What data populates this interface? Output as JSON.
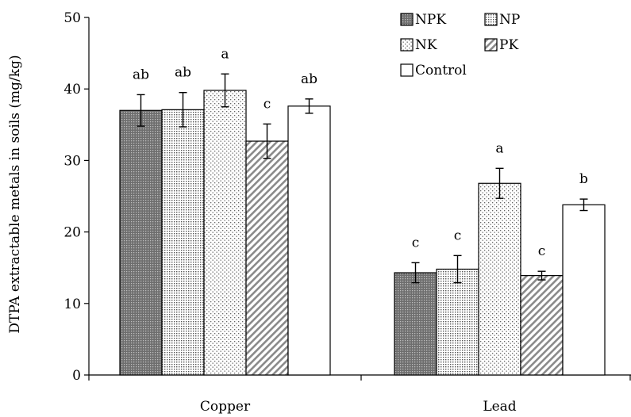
{
  "chart_data": {
    "type": "bar",
    "ylabel": "DTPA extractable metals in soils (mg/kg)",
    "xlabel": "",
    "ylim": [
      0,
      50
    ],
    "yticks": [
      0,
      10,
      20,
      30,
      40,
      50
    ],
    "categories": [
      "Copper",
      "Lead"
    ],
    "legend_position": "top-right",
    "grid": false,
    "series": [
      {
        "name": "NPK",
        "values": [
          37.0,
          14.3
        ],
        "errors": [
          2.2,
          1.4
        ],
        "letters": [
          "ab",
          "c"
        ],
        "color": "#808080",
        "pattern": "dense-dots"
      },
      {
        "name": "NP",
        "values": [
          37.1,
          14.8
        ],
        "errors": [
          2.4,
          1.9
        ],
        "letters": [
          "ab",
          "c"
        ],
        "color": "#d9d9d9",
        "pattern": "fine-dots"
      },
      {
        "name": "NK",
        "values": [
          39.8,
          26.8
        ],
        "errors": [
          2.3,
          2.1
        ],
        "letters": [
          "a",
          "a"
        ],
        "color": "#f2f2f2",
        "pattern": "sparse-dots"
      },
      {
        "name": "PK",
        "values": [
          32.7,
          13.9
        ],
        "errors": [
          2.4,
          0.6
        ],
        "letters": [
          "c",
          "c"
        ],
        "color": "#ffffff",
        "pattern": "diagonal"
      },
      {
        "name": "Control",
        "values": [
          37.6,
          23.8
        ],
        "errors": [
          1.0,
          0.8
        ],
        "letters": [
          "ab",
          "b"
        ],
        "color": "#ffffff",
        "pattern": "none"
      }
    ]
  }
}
